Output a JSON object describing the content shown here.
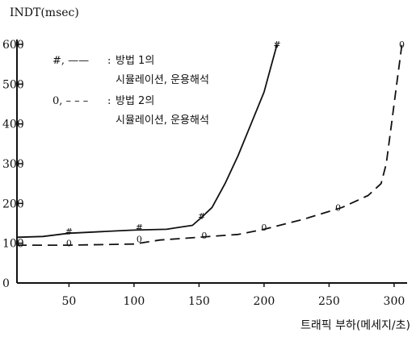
{
  "chart_data": {
    "type": "line",
    "title": "",
    "ylabel": "INDT(msec)",
    "xlabel": "트래픽 부하(메세지/초)",
    "xlim": [
      10,
      310
    ],
    "ylim": [
      0,
      600
    ],
    "x_ticks": [
      50,
      100,
      150,
      200,
      250,
      300
    ],
    "y_ticks": [
      0,
      100,
      200,
      300,
      400,
      500,
      600
    ],
    "grid": false,
    "legend_position": "top-left",
    "legend": [
      {
        "symbol": "#, ——",
        "sep": ":",
        "line1": "방법 1의",
        "line2": "시뮬레이션, 운용해석"
      },
      {
        "symbol": "0, – – –",
        "sep": ":",
        "line1": "방법 2의",
        "line2": "시뮬레이션, 운용해석"
      }
    ],
    "series": [
      {
        "style": "solid",
        "marker": "#",
        "curve_x": [
          10,
          30,
          50,
          80,
          100,
          125,
          135,
          145,
          152,
          160,
          170,
          180,
          190,
          200,
          205,
          210
        ],
        "curve_y": [
          115,
          117,
          125,
          130,
          133,
          135,
          140,
          145,
          165,
          190,
          250,
          320,
          400,
          480,
          540,
          600
        ],
        "points_x": [
          50,
          104,
          152,
          210
        ],
        "points_y": [
          130,
          140,
          168,
          600
        ]
      },
      {
        "style": "dashed",
        "marker": "0",
        "curve_x": [
          10,
          50,
          100,
          120,
          150,
          180,
          200,
          230,
          260,
          280,
          290,
          294,
          298,
          302,
          306
        ],
        "curve_y": [
          95,
          95,
          98,
          108,
          115,
          122,
          135,
          160,
          190,
          220,
          250,
          300,
          400,
          500,
          600
        ],
        "points_x": [
          50,
          104,
          154,
          200,
          257,
          306
        ],
        "points_y": [
          100,
          110,
          120,
          140,
          190,
          600
        ]
      }
    ]
  }
}
